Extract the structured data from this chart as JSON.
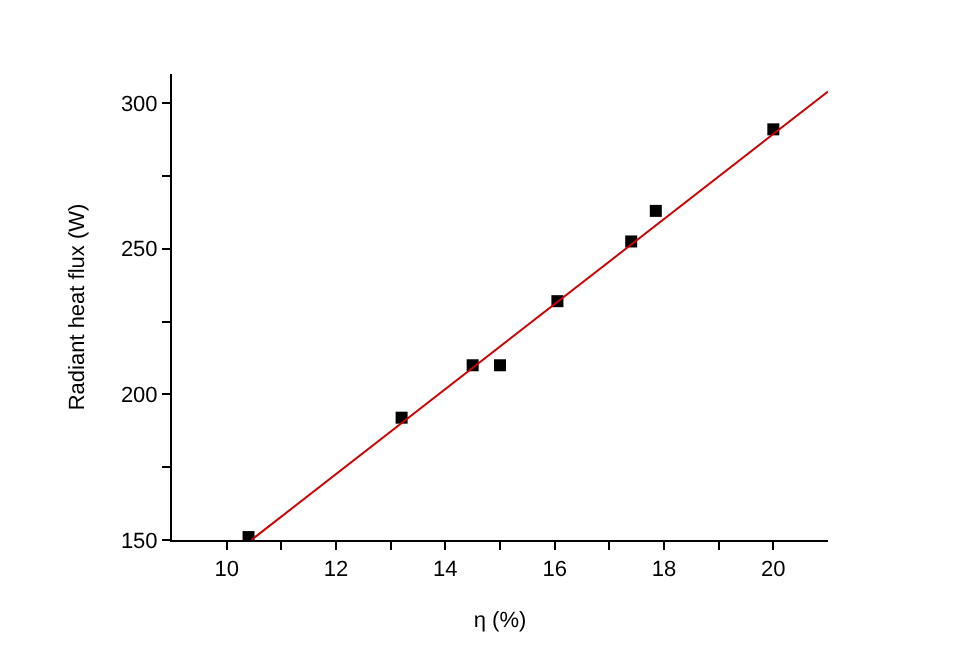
{
  "chart_data": {
    "type": "scatter",
    "xlabel": "η (%)",
    "ylabel": "Radiant heat flux (W)",
    "xlim": [
      9,
      21
    ],
    "ylim": [
      150,
      310
    ],
    "xticks": [
      10,
      {
        "value": 11,
        "label": null
      },
      12,
      {
        "value": 13,
        "label": null
      },
      14,
      {
        "value": 15,
        "label": null
      },
      16,
      {
        "value": 17,
        "label": null
      },
      18,
      {
        "value": 19,
        "label": null
      },
      20
    ],
    "yticks": [
      150,
      {
        "value": 175,
        "label": null
      },
      200,
      {
        "value": 225,
        "label": null
      },
      250,
      {
        "value": 275,
        "label": null
      },
      300
    ],
    "series": [
      {
        "marker": "square",
        "color": "#000000",
        "x": [
          10.4,
          13.2,
          14.5,
          15.0,
          16.05,
          17.4,
          17.85,
          20.0
        ],
        "values": [
          151,
          192,
          210,
          210,
          232,
          252.5,
          263,
          291
        ]
      },
      {
        "type": "line",
        "color": "#cc0000",
        "x": [
          10.45,
          21
        ],
        "values": [
          150,
          304
        ],
        "line_style": "solid",
        "marker": "none"
      }
    ]
  }
}
